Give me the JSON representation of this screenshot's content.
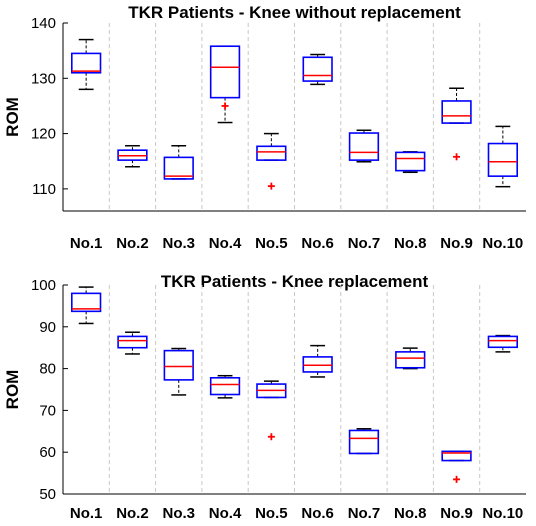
{
  "chart_data": [
    {
      "type": "boxplot",
      "title": "TKR Patients - Knee without replacement",
      "ylabel": "ROM",
      "xlabel": "",
      "categories": [
        "No.1",
        "No.2",
        "No.3",
        "No.4",
        "No.5",
        "No.6",
        "No.7",
        "No.8",
        "No.9",
        "No.10"
      ],
      "ylim": [
        106,
        140
      ],
      "yticks": [
        110,
        120,
        130,
        140
      ],
      "grid": "vertical dashed",
      "boxes": [
        {
          "whisker_low": 128,
          "q1": 131,
          "median": 131.3,
          "q3": 134.5,
          "whisker_high": 137,
          "outliers": []
        },
        {
          "whisker_low": 114,
          "q1": 115.2,
          "median": 116,
          "q3": 117,
          "whisker_high": 117.8,
          "outliers": []
        },
        {
          "whisker_low": 111.8,
          "q1": 111.8,
          "median": 112.3,
          "q3": 115.7,
          "whisker_high": 117.8,
          "outliers": []
        },
        {
          "whisker_low": 122,
          "q1": 126.5,
          "median": 132,
          "q3": 135.8,
          "whisker_high": 135.8,
          "outliers": [
            125
          ]
        },
        {
          "whisker_low": 115.2,
          "q1": 115.2,
          "median": 116.7,
          "q3": 117.7,
          "whisker_high": 120,
          "outliers": [
            110.5
          ]
        },
        {
          "whisker_low": 128.9,
          "q1": 129.5,
          "median": 130.5,
          "q3": 133.8,
          "whisker_high": 134.3,
          "outliers": []
        },
        {
          "whisker_low": 114.9,
          "q1": 115.2,
          "median": 116.6,
          "q3": 120.1,
          "whisker_high": 120.6,
          "outliers": []
        },
        {
          "whisker_low": 113,
          "q1": 113.3,
          "median": 115.5,
          "q3": 116.6,
          "whisker_high": 116.7,
          "outliers": []
        },
        {
          "whisker_low": 121.9,
          "q1": 121.9,
          "median": 123.2,
          "q3": 125.9,
          "whisker_high": 128.2,
          "outliers": [
            115.8
          ]
        },
        {
          "whisker_low": 110.4,
          "q1": 112.3,
          "median": 114.9,
          "q3": 118.2,
          "whisker_high": 121.3,
          "outliers": []
        }
      ]
    },
    {
      "type": "boxplot",
      "title": "TKR Patients - Knee replacement",
      "ylabel": "ROM",
      "xlabel": "",
      "categories": [
        "No.1",
        "No.2",
        "No.3",
        "No.4",
        "No.5",
        "No.6",
        "No.7",
        "No.8",
        "No.9",
        "No.10"
      ],
      "ylim": [
        50,
        100
      ],
      "yticks": [
        50,
        60,
        70,
        80,
        90,
        100
      ],
      "grid": "vertical dashed",
      "boxes": [
        {
          "whisker_low": 90.8,
          "q1": 93.7,
          "median": 94.3,
          "q3": 98,
          "whisker_high": 99.5,
          "outliers": []
        },
        {
          "whisker_low": 83.5,
          "q1": 85,
          "median": 86.7,
          "q3": 87.7,
          "whisker_high": 88.7,
          "outliers": []
        },
        {
          "whisker_low": 73.7,
          "q1": 77.3,
          "median": 80.5,
          "q3": 84.3,
          "whisker_high": 84.8,
          "outliers": []
        },
        {
          "whisker_low": 73,
          "q1": 73.8,
          "median": 76.2,
          "q3": 77.8,
          "whisker_high": 78.3,
          "outliers": []
        },
        {
          "whisker_low": 73.1,
          "q1": 73.1,
          "median": 74.8,
          "q3": 76.3,
          "whisker_high": 77,
          "outliers": [
            63.7
          ]
        },
        {
          "whisker_low": 78,
          "q1": 79.2,
          "median": 80.8,
          "q3": 82.8,
          "whisker_high": 85.5,
          "outliers": []
        },
        {
          "whisker_low": 59.7,
          "q1": 59.7,
          "median": 63.3,
          "q3": 65.2,
          "whisker_high": 65.6,
          "outliers": []
        },
        {
          "whisker_low": 80,
          "q1": 80.2,
          "median": 82.5,
          "q3": 84,
          "whisker_high": 84.9,
          "outliers": []
        },
        {
          "whisker_low": 58,
          "q1": 58,
          "median": 59.8,
          "q3": 60.2,
          "whisker_high": 60.2,
          "outliers": [
            53.5
          ]
        },
        {
          "whisker_low": 84,
          "q1": 85.1,
          "median": 86.7,
          "q3": 87.7,
          "whisker_high": 87.9,
          "outliers": []
        }
      ]
    }
  ],
  "colors": {
    "box": "#0000ff",
    "median": "#ff0000",
    "outlier": "#ff0000",
    "whisker": "#000000",
    "grid": "#c8c8c8"
  }
}
